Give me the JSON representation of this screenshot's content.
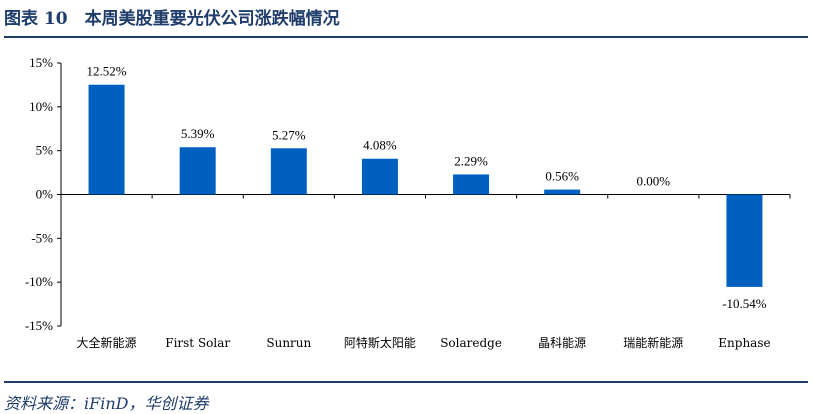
{
  "header": {
    "title": "图表 10　本周美股重要光伏公司涨跌幅情况"
  },
  "footer": {
    "source": "资料来源：iFinD，华创证券"
  },
  "colors": {
    "bar": "#0060c0",
    "accent": "#1f3d6b",
    "axis": "#000000"
  },
  "chart_data": {
    "type": "bar",
    "title": "本周美股重要光伏公司涨跌幅情况",
    "xlabel": "",
    "ylabel": "",
    "ylim": [
      -15,
      15
    ],
    "yticks": [
      "15%",
      "10%",
      "5%",
      "0%",
      "-5%",
      "-10%",
      "-15%"
    ],
    "ytick_values": [
      15,
      10,
      5,
      0,
      -5,
      -10,
      -15
    ],
    "categories": [
      "大全新能源",
      "First Solar",
      "Sunrun",
      "阿特斯太阳能",
      "Solaredge",
      "晶科能源",
      "瑞能新能源",
      "Enphase"
    ],
    "values": [
      12.52,
      5.39,
      5.27,
      4.08,
      2.29,
      0.56,
      0.0,
      -10.54
    ],
    "data_labels": [
      "12.52%",
      "5.39%",
      "5.27%",
      "4.08%",
      "2.29%",
      "0.56%",
      "0.00%",
      "-10.54%"
    ],
    "grid": false,
    "legend": "none"
  }
}
